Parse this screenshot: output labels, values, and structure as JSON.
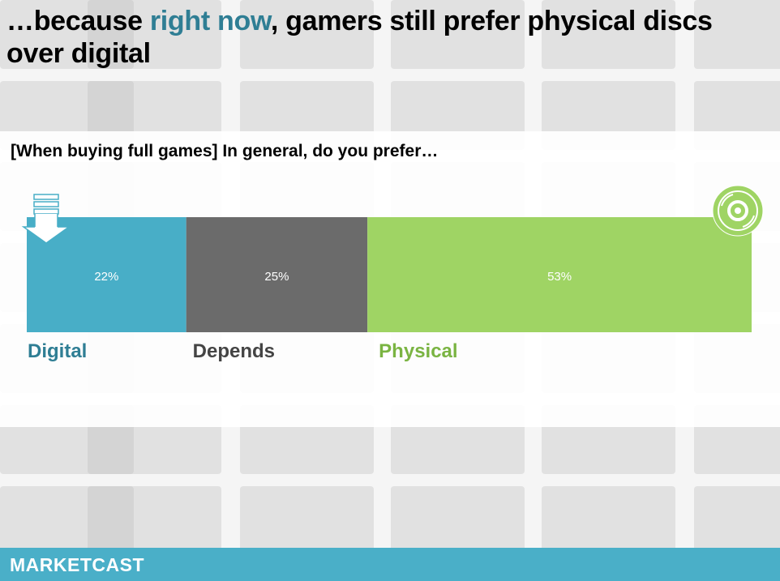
{
  "title": {
    "pre": "…because ",
    "highlight": "right now",
    "post": ", gamers still prefer physical discs over digital"
  },
  "question": "[When buying full games] In general, do you prefer…",
  "colors": {
    "digital": "#48aec7",
    "depends": "#6b6b6b",
    "physical": "#9fd464",
    "digital_label": "#2f7e94",
    "depends_label": "#444444",
    "physical_label": "#7ab442",
    "title_highlight": "#2f7e94",
    "footer": "#4aafc8"
  },
  "chart_data": {
    "type": "bar",
    "orientation": "horizontal-stacked",
    "categories": [
      "Digital",
      "Depends",
      "Physical"
    ],
    "values": [
      22,
      25,
      53
    ],
    "value_labels": [
      "22%",
      "25%",
      "53%"
    ],
    "xlim": [
      0,
      100
    ],
    "grid": false,
    "legend": "none"
  },
  "icons": {
    "digital": "download-arrow-icon",
    "physical": "disc-icon"
  },
  "footer": {
    "logo_text": "MARKETCAST"
  }
}
